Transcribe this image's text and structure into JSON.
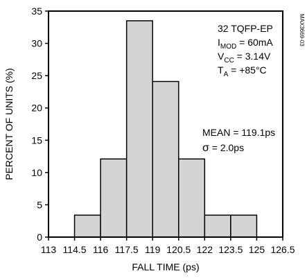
{
  "chart_data": {
    "type": "bar",
    "subtype": "histogram",
    "title": "",
    "xlabel": "FALL TIME (ps)",
    "ylabel": "PERCENT OF UNITS (%)",
    "xlim": [
      113,
      126.5
    ],
    "ylim": [
      0,
      35
    ],
    "x_ticks": [
      "113",
      "114.5",
      "116",
      "117.5",
      "119",
      "120.5",
      "122",
      "123.5",
      "125",
      "126.5"
    ],
    "y_ticks": [
      "0",
      "5",
      "10",
      "15",
      "20",
      "25",
      "30",
      "35"
    ],
    "bin_width": 1.5,
    "bins": [
      {
        "start": 114.5,
        "end": 116.0,
        "value": 3.4
      },
      {
        "start": 116.0,
        "end": 117.5,
        "value": 12.1
      },
      {
        "start": 117.5,
        "end": 119.0,
        "value": 33.5
      },
      {
        "start": 119.0,
        "end": 120.5,
        "value": 24.1
      },
      {
        "start": 120.5,
        "end": 122.0,
        "value": 12.1
      },
      {
        "start": 122.0,
        "end": 123.5,
        "value": 3.4
      },
      {
        "start": 123.5,
        "end": 125.0,
        "value": 3.4
      }
    ],
    "bar_color": "#d4d4d4",
    "grid": false,
    "legend": "none"
  },
  "conditions": {
    "package": "32 TQFP-EP",
    "imod": {
      "main": "I",
      "sub": "MOD",
      "rest": " = 60mA"
    },
    "vcc": {
      "main": "V",
      "sub": "CC",
      "rest": " = 3.14V"
    },
    "ta": {
      "main": "T",
      "sub": "A",
      "rest": " = +85°C"
    }
  },
  "stats": {
    "mean": "MEAN = 119.1ps",
    "sigma_symbol": "σ",
    "sigma_rest": " = 2.0ps"
  },
  "figure_id": "MAX3669-03"
}
